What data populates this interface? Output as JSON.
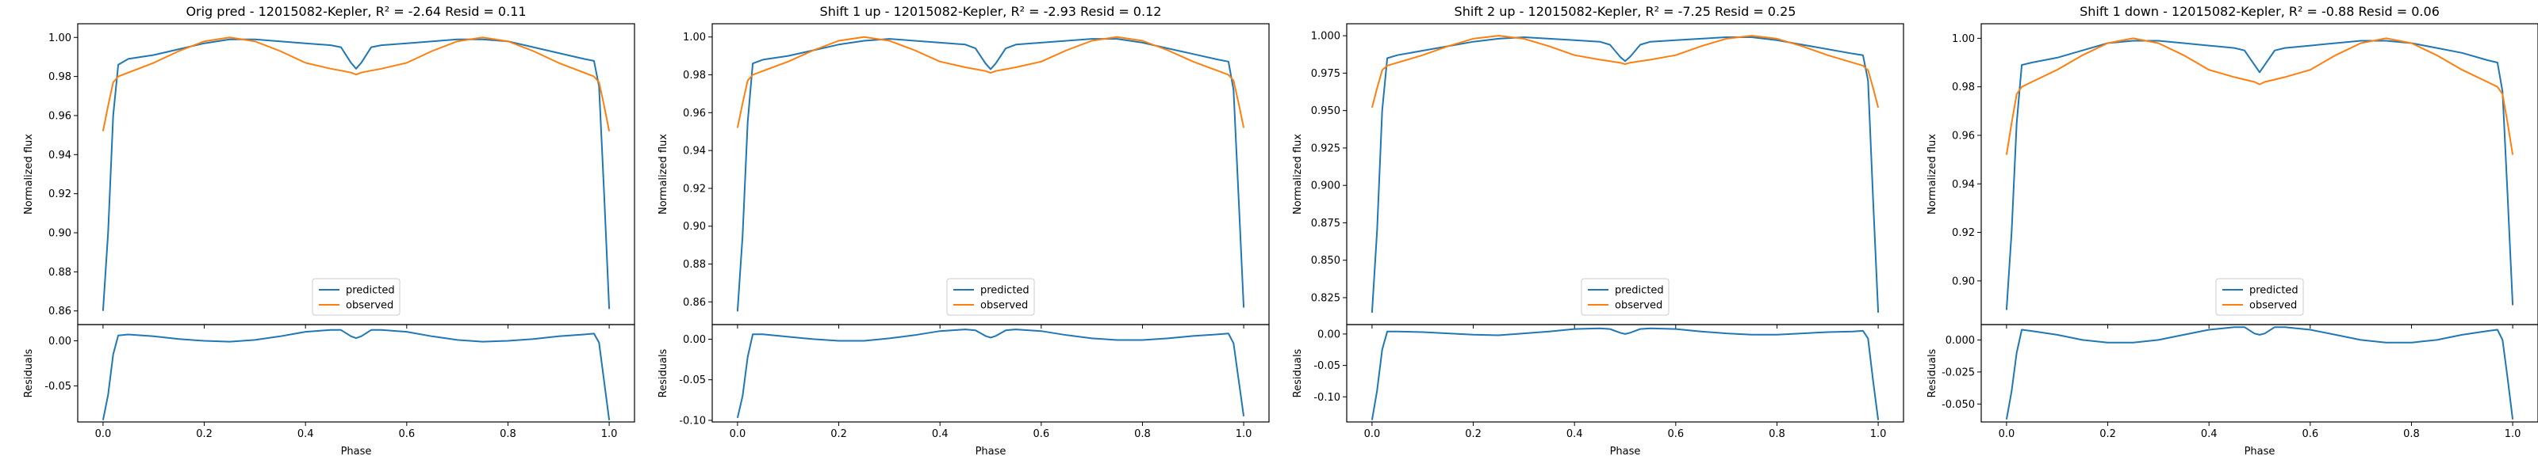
{
  "figure": {
    "panels": [
      {
        "title": "Orig pred - 12015082-Kepler, R² = -2.64 Resid = 0.11",
        "xlabel": "Phase",
        "top_ylabel": "Normalized flux",
        "bottom_ylabel": "Residuals",
        "legend": [
          "predicted",
          "observed"
        ],
        "xticks": [
          "0.0",
          "0.2",
          "0.4",
          "0.6",
          "0.8",
          "1.0"
        ],
        "top_yticks": [
          "0.86",
          "0.88",
          "0.90",
          "0.92",
          "0.94",
          "0.96",
          "0.98",
          "1.00"
        ],
        "bottom_yticks": [
          "-0.05",
          "0.00"
        ]
      },
      {
        "title": "Shift 1 up - 12015082-Kepler, R² = -2.93 Resid = 0.12",
        "xlabel": "Phase",
        "top_ylabel": "Normalized flux",
        "bottom_ylabel": "Residuals",
        "legend": [
          "predicted",
          "observed"
        ],
        "xticks": [
          "0.0",
          "0.2",
          "0.4",
          "0.6",
          "0.8",
          "1.0"
        ],
        "top_yticks": [
          "0.86",
          "0.88",
          "0.90",
          "0.92",
          "0.94",
          "0.96",
          "0.98",
          "1.00"
        ],
        "bottom_yticks": [
          "-0.10",
          "-0.05",
          "0.00"
        ]
      },
      {
        "title": "Shift 2 up - 12015082-Kepler, R² = -7.25 Resid = 0.25",
        "xlabel": "Phase",
        "top_ylabel": "Normalized flux",
        "bottom_ylabel": "Residuals",
        "legend": [
          "predicted",
          "observed"
        ],
        "xticks": [
          "0.0",
          "0.2",
          "0.4",
          "0.6",
          "0.8",
          "1.0"
        ],
        "top_yticks": [
          "0.825",
          "0.850",
          "0.875",
          "0.900",
          "0.925",
          "0.950",
          "0.975",
          "1.000"
        ],
        "bottom_yticks": [
          "-0.10",
          "-0.05",
          "0.00"
        ]
      },
      {
        "title": "Shift 1 down - 12015082-Kepler, R² = -0.88 Resid = 0.06",
        "xlabel": "Phase",
        "top_ylabel": "Normalized flux",
        "bottom_ylabel": "Residuals",
        "legend": [
          "predicted",
          "observed"
        ],
        "xticks": [
          "0.0",
          "0.2",
          "0.4",
          "0.6",
          "0.8",
          "1.0"
        ],
        "top_yticks": [
          "0.90",
          "0.92",
          "0.94",
          "0.96",
          "0.98",
          "1.00"
        ],
        "bottom_yticks": [
          "-0.050",
          "-0.025",
          "0.000"
        ]
      }
    ]
  },
  "chart_data": [
    {
      "type": "line",
      "title": "Orig pred - 12015082-Kepler, R² = -2.64 Resid = 0.11",
      "xlabel": "Phase",
      "ylabel": "Normalized flux",
      "xlim": [
        -0.05,
        1.05
      ],
      "ylim": [
        0.853,
        1.007
      ],
      "residual_ylim": [
        -0.09,
        0.018
      ],
      "x": [
        0.0,
        0.01,
        0.02,
        0.03,
        0.05,
        0.1,
        0.15,
        0.2,
        0.25,
        0.3,
        0.35,
        0.4,
        0.45,
        0.47,
        0.49,
        0.5,
        0.51,
        0.53,
        0.55,
        0.6,
        0.65,
        0.7,
        0.75,
        0.8,
        0.85,
        0.9,
        0.95,
        0.97,
        0.98,
        0.99,
        1.0
      ],
      "series": [
        {
          "name": "predicted",
          "color": "#1f77b4",
          "values": [
            0.86,
            0.9,
            0.96,
            0.986,
            0.989,
            0.991,
            0.994,
            0.997,
            0.999,
            0.999,
            0.998,
            0.997,
            0.996,
            0.995,
            0.987,
            0.984,
            0.987,
            0.995,
            0.996,
            0.997,
            0.998,
            0.999,
            0.999,
            0.998,
            0.995,
            0.992,
            0.989,
            0.988,
            0.975,
            0.92,
            0.861
          ]
        },
        {
          "name": "observed",
          "color": "#ff7f0e",
          "values": [
            0.952,
            0.965,
            0.977,
            0.98,
            0.982,
            0.987,
            0.993,
            0.998,
            1.0,
            0.998,
            0.993,
            0.987,
            0.984,
            0.983,
            0.982,
            0.981,
            0.982,
            0.983,
            0.984,
            0.987,
            0.993,
            0.998,
            1.0,
            0.998,
            0.993,
            0.987,
            0.982,
            0.98,
            0.977,
            0.965,
            0.952
          ]
        },
        {
          "name": "residual",
          "color": "#1f77b4",
          "values": [
            -0.088,
            -0.06,
            -0.015,
            0.006,
            0.007,
            0.005,
            0.002,
            0.0,
            -0.001,
            0.001,
            0.005,
            0.01,
            0.012,
            0.012,
            0.005,
            0.003,
            0.005,
            0.012,
            0.012,
            0.01,
            0.005,
            0.001,
            -0.001,
            0.0,
            0.002,
            0.005,
            0.007,
            0.008,
            -0.002,
            -0.045,
            -0.088
          ]
        }
      ]
    },
    {
      "type": "line",
      "title": "Shift 1 up - 12015082-Kepler, R² = -2.93 Resid = 0.12",
      "xlabel": "Phase",
      "ylabel": "Normalized flux",
      "xlim": [
        -0.05,
        1.05
      ],
      "ylim": [
        0.848,
        1.007
      ],
      "residual_ylim": [
        -0.102,
        0.018
      ],
      "x": [
        0.0,
        0.01,
        0.02,
        0.03,
        0.05,
        0.1,
        0.15,
        0.2,
        0.25,
        0.3,
        0.35,
        0.4,
        0.45,
        0.47,
        0.49,
        0.5,
        0.51,
        0.53,
        0.55,
        0.6,
        0.65,
        0.7,
        0.75,
        0.8,
        0.85,
        0.9,
        0.95,
        0.97,
        0.98,
        0.99,
        1.0
      ],
      "series": [
        {
          "name": "predicted",
          "color": "#1f77b4",
          "values": [
            0.855,
            0.895,
            0.955,
            0.986,
            0.988,
            0.99,
            0.993,
            0.996,
            0.998,
            0.999,
            0.998,
            0.997,
            0.996,
            0.994,
            0.986,
            0.983,
            0.986,
            0.994,
            0.996,
            0.997,
            0.998,
            0.999,
            0.999,
            0.997,
            0.994,
            0.991,
            0.988,
            0.987,
            0.972,
            0.915,
            0.857
          ]
        },
        {
          "name": "observed",
          "color": "#ff7f0e",
          "values": [
            0.952,
            0.965,
            0.977,
            0.98,
            0.982,
            0.987,
            0.993,
            0.998,
            1.0,
            0.998,
            0.993,
            0.987,
            0.984,
            0.983,
            0.982,
            0.981,
            0.982,
            0.983,
            0.984,
            0.987,
            0.993,
            0.998,
            1.0,
            0.998,
            0.993,
            0.987,
            0.982,
            0.98,
            0.977,
            0.965,
            0.952
          ]
        },
        {
          "name": "residual",
          "color": "#1f77b4",
          "values": [
            -0.097,
            -0.07,
            -0.022,
            0.006,
            0.006,
            0.003,
            0.0,
            -0.002,
            -0.002,
            0.001,
            0.005,
            0.01,
            0.012,
            0.011,
            0.004,
            0.002,
            0.004,
            0.011,
            0.012,
            0.01,
            0.005,
            0.001,
            -0.001,
            -0.001,
            0.001,
            0.004,
            0.006,
            0.007,
            -0.005,
            -0.05,
            -0.095
          ]
        }
      ]
    },
    {
      "type": "line",
      "title": "Shift 2 up - 12015082-Kepler, R² = -7.25 Resid = 0.25",
      "xlabel": "Phase",
      "ylabel": "Normalized flux",
      "xlim": [
        -0.05,
        1.05
      ],
      "ylim": [
        0.807,
        1.008
      ],
      "residual_ylim": [
        -0.14,
        0.015
      ],
      "x": [
        0.0,
        0.01,
        0.02,
        0.03,
        0.05,
        0.1,
        0.15,
        0.2,
        0.25,
        0.3,
        0.35,
        0.4,
        0.45,
        0.47,
        0.49,
        0.5,
        0.51,
        0.53,
        0.55,
        0.6,
        0.65,
        0.7,
        0.75,
        0.8,
        0.85,
        0.9,
        0.95,
        0.97,
        0.98,
        0.99,
        1.0
      ],
      "series": [
        {
          "name": "predicted",
          "color": "#1f77b4",
          "values": [
            0.815,
            0.87,
            0.95,
            0.985,
            0.987,
            0.99,
            0.993,
            0.996,
            0.998,
            0.999,
            0.998,
            0.997,
            0.996,
            0.994,
            0.986,
            0.983,
            0.986,
            0.994,
            0.996,
            0.997,
            0.998,
            0.999,
            0.999,
            0.997,
            0.994,
            0.991,
            0.988,
            0.987,
            0.97,
            0.89,
            0.815
          ]
        },
        {
          "name": "observed",
          "color": "#ff7f0e",
          "values": [
            0.952,
            0.965,
            0.977,
            0.98,
            0.982,
            0.987,
            0.993,
            0.998,
            1.0,
            0.998,
            0.993,
            0.987,
            0.984,
            0.983,
            0.982,
            0.981,
            0.982,
            0.983,
            0.984,
            0.987,
            0.993,
            0.998,
            1.0,
            0.998,
            0.993,
            0.987,
            0.982,
            0.98,
            0.977,
            0.965,
            0.952
          ]
        },
        {
          "name": "residual",
          "color": "#1f77b4",
          "values": [
            -0.137,
            -0.09,
            -0.025,
            0.004,
            0.004,
            0.003,
            0.001,
            -0.001,
            -0.002,
            0.001,
            0.004,
            0.008,
            0.009,
            0.008,
            0.002,
            0.0,
            0.002,
            0.008,
            0.009,
            0.008,
            0.004,
            0.001,
            -0.001,
            -0.001,
            0.001,
            0.003,
            0.004,
            0.005,
            -0.007,
            -0.075,
            -0.137
          ]
        }
      ]
    },
    {
      "type": "line",
      "title": "Shift 1 down - 12015082-Kepler, R² = -0.88 Resid = 0.06",
      "xlabel": "Phase",
      "ylabel": "Normalized flux",
      "xlim": [
        -0.05,
        1.05
      ],
      "ylim": [
        0.882,
        1.006
      ],
      "residual_ylim": [
        -0.064,
        0.012
      ],
      "x": [
        0.0,
        0.01,
        0.02,
        0.03,
        0.05,
        0.1,
        0.15,
        0.2,
        0.25,
        0.3,
        0.35,
        0.4,
        0.45,
        0.47,
        0.49,
        0.5,
        0.51,
        0.53,
        0.55,
        0.6,
        0.65,
        0.7,
        0.75,
        0.8,
        0.85,
        0.9,
        0.95,
        0.97,
        0.98,
        0.99,
        1.0
      ],
      "series": [
        {
          "name": "predicted",
          "color": "#1f77b4",
          "values": [
            0.888,
            0.92,
            0.965,
            0.989,
            0.99,
            0.992,
            0.995,
            0.998,
            0.999,
            0.999,
            0.998,
            0.997,
            0.996,
            0.995,
            0.989,
            0.986,
            0.989,
            0.995,
            0.996,
            0.997,
            0.998,
            0.999,
            0.999,
            0.998,
            0.996,
            0.994,
            0.991,
            0.99,
            0.978,
            0.935,
            0.89
          ]
        },
        {
          "name": "observed",
          "color": "#ff7f0e",
          "values": [
            0.952,
            0.965,
            0.977,
            0.98,
            0.982,
            0.987,
            0.993,
            0.998,
            1.0,
            0.998,
            0.993,
            0.987,
            0.984,
            0.983,
            0.982,
            0.981,
            0.982,
            0.983,
            0.984,
            0.987,
            0.993,
            0.998,
            1.0,
            0.998,
            0.993,
            0.987,
            0.982,
            0.98,
            0.977,
            0.965,
            0.952
          ]
        },
        {
          "name": "residual",
          "color": "#1f77b4",
          "values": [
            -0.062,
            -0.04,
            -0.01,
            0.008,
            0.007,
            0.004,
            0.0,
            -0.002,
            -0.002,
            0.0,
            0.004,
            0.008,
            0.01,
            0.01,
            0.005,
            0.004,
            0.005,
            0.01,
            0.01,
            0.008,
            0.004,
            0.0,
            -0.002,
            -0.002,
            0.0,
            0.004,
            0.007,
            0.008,
            0.0,
            -0.03,
            -0.062
          ]
        }
      ]
    }
  ]
}
